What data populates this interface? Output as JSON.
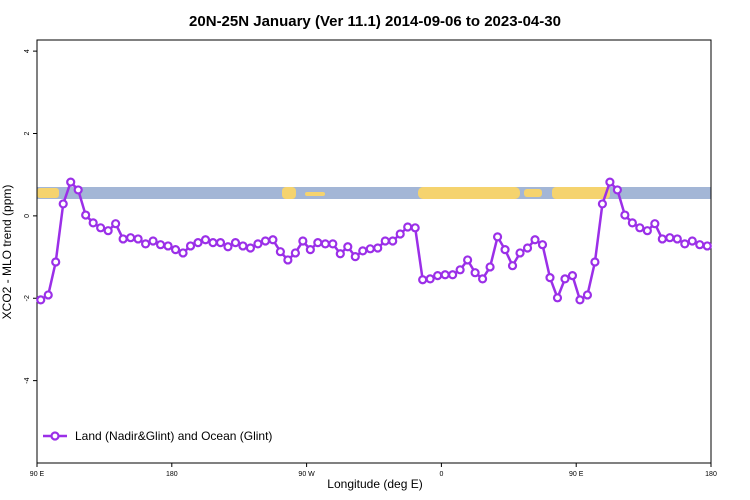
{
  "chart_data": {
    "type": "line",
    "title": "20N-25N January (Ver 11.1)   2014-09-06 to 2023-04-30",
    "x_label": "Longitude (deg E)",
    "y_label": "XCO2 - MLO trend (ppm)",
    "xlim": [
      90,
      540
    ],
    "ylim": [
      -6,
      4.27
    ],
    "xticks": [
      {
        "value": 90,
        "label": "90 E"
      },
      180,
      {
        "value": 270,
        "label": "90 W"
      },
      {
        "value": 360,
        "label": "0"
      },
      {
        "value": 450,
        "label": "90 E"
      },
      {
        "value": 540,
        "label": "180"
      }
    ],
    "yticks": [
      4,
      2,
      0,
      -2,
      -4
    ],
    "legend_position": "bottom-left",
    "x": [
      92.5,
      97.5,
      102.5,
      107.5,
      112.5,
      117.5,
      122.5,
      127.5,
      132.5,
      137.5,
      142.5,
      147.5,
      152.5,
      157.5,
      162.5,
      167.5,
      172.5,
      177.5,
      182.5,
      187.5,
      192.5,
      197.5,
      202.5,
      207.5,
      212.5,
      217.5,
      222.5,
      227.5,
      232.5,
      237.5,
      242.5,
      247.5,
      252.5,
      257.5,
      262.5,
      267.5,
      272.5,
      277.5,
      282.5,
      287.5,
      292.5,
      297.5,
      302.5,
      307.5,
      312.5,
      317.5,
      322.5,
      327.5,
      332.5,
      337.5,
      342.5,
      347.5,
      352.5,
      357.5,
      362.5,
      367.5,
      372.5,
      377.5,
      382.5,
      387.5,
      392.5,
      397.5,
      402.5,
      407.5,
      412.5,
      417.5,
      422.5,
      427.5,
      432.5,
      437.5,
      442.5,
      447.5,
      452.5,
      457.5,
      462.5,
      467.5,
      472.5,
      477.5,
      482.5,
      487.5,
      492.5,
      497.5,
      502.5,
      507.5,
      512.5,
      517.5,
      522.5,
      527.5,
      532.5,
      537.5
    ],
    "series": [
      {
        "name": "Land (Nadir&Glint) and Ocean (Glint)",
        "color": "#9b2fe8",
        "values": [
          -2.04,
          -1.92,
          -1.12,
          0.29,
          0.82,
          0.63,
          0.02,
          -0.17,
          -0.29,
          -0.36,
          -0.19,
          -0.56,
          -0.53,
          -0.56,
          -0.68,
          -0.61,
          -0.7,
          -0.73,
          -0.82,
          -0.9,
          -0.73,
          -0.65,
          -0.58,
          -0.65,
          -0.65,
          -0.75,
          -0.65,
          -0.73,
          -0.78,
          -0.68,
          -0.61,
          -0.58,
          -0.87,
          -1.07,
          -0.9,
          -0.61,
          -0.82,
          -0.65,
          -0.68,
          -0.68,
          -0.92,
          -0.75,
          -0.99,
          -0.85,
          -0.8,
          -0.78,
          -0.61,
          -0.61,
          -0.44,
          -0.27,
          -0.29,
          -1.55,
          -1.53,
          -1.45,
          -1.43,
          -1.43,
          -1.31,
          -1.07,
          -1.38,
          -1.53,
          -1.24,
          -0.51,
          -0.82,
          -1.21,
          -0.9,
          -0.78,
          -0.58,
          -0.7,
          -1.5,
          -1.99,
          -1.53,
          -1.45,
          -2.04,
          -1.92,
          -1.12,
          0.29,
          0.82,
          0.63,
          0.02,
          -0.17,
          -0.29,
          -0.36,
          -0.19,
          -0.56,
          -0.53,
          -0.56,
          -0.68,
          -0.61,
          -0.7,
          -0.73
        ]
      }
    ]
  }
}
